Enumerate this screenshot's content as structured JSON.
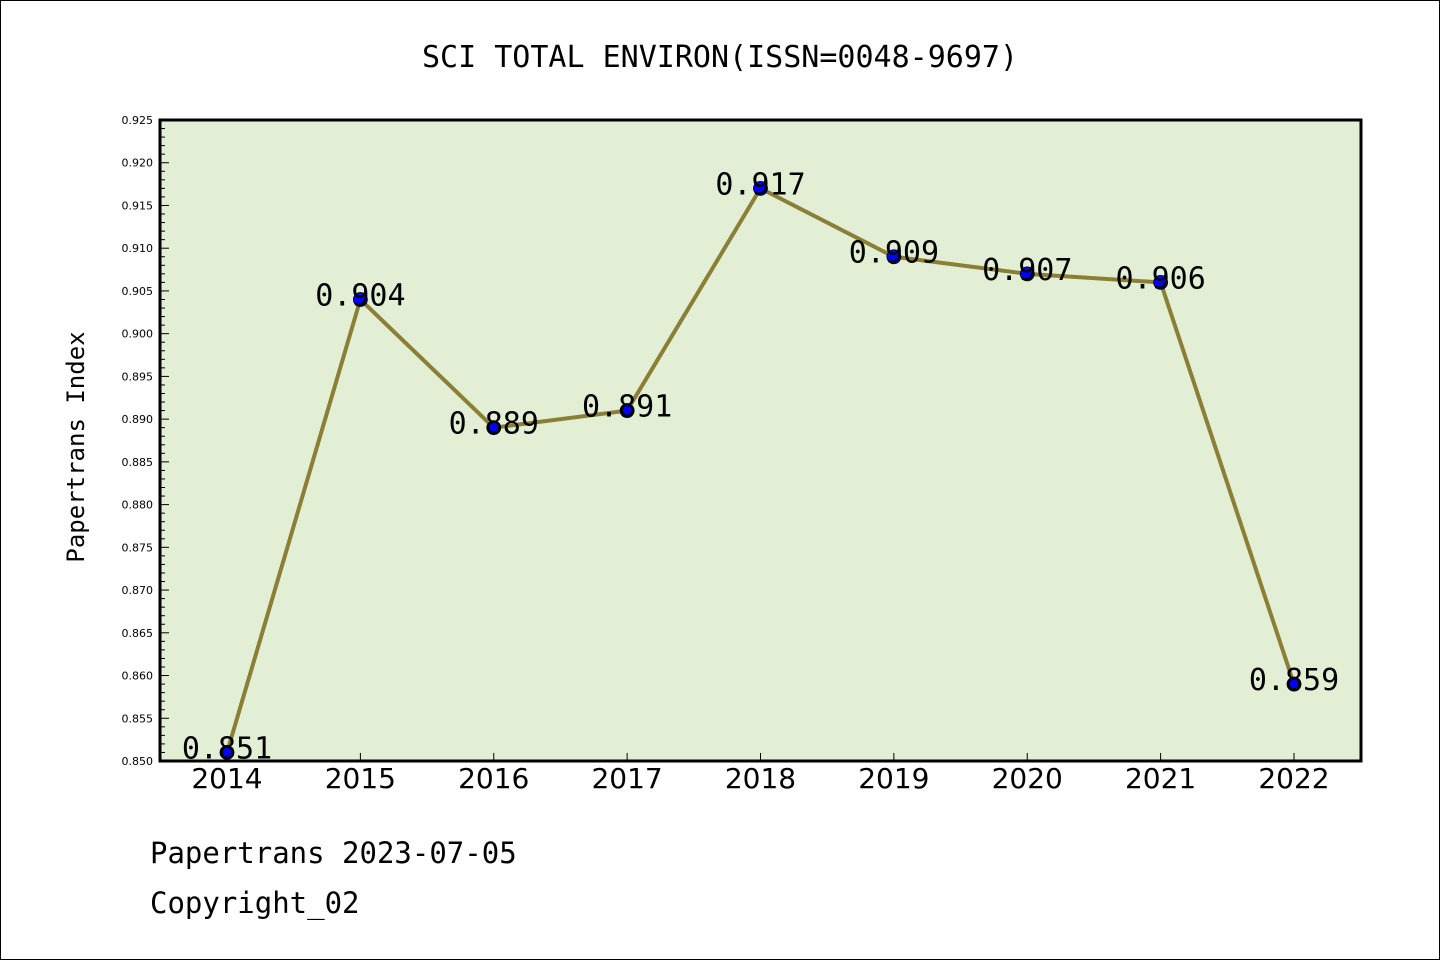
{
  "footer": {
    "line1": "Papertrans 2023-07-05",
    "line2": "Copyright_02"
  },
  "colors": {
    "plot_background": "#e2efd5",
    "line": "#8b7f35",
    "marker": "#0000ff"
  },
  "chart_data": {
    "type": "line",
    "title": "SCI TOTAL ENVIRON(ISSN=0048-9697)",
    "xlabel": "",
    "ylabel": "Papertrans Index",
    "categories": [
      "2014",
      "2015",
      "2016",
      "2017",
      "2018",
      "2019",
      "2020",
      "2021",
      "2022"
    ],
    "series": [
      {
        "values": [
          0.851,
          0.904,
          0.889,
          0.891,
          0.917,
          0.909,
          0.907,
          0.906,
          0.859
        ],
        "data_labels": [
          "0.851",
          "0.904",
          "0.889",
          "0.891",
          "0.917",
          "0.909",
          "0.907",
          "0.906",
          "0.859"
        ]
      }
    ],
    "ylim": [
      0.85,
      0.925
    ],
    "yticks": [
      "0.850",
      "0.855",
      "0.860",
      "0.865",
      "0.870",
      "0.875",
      "0.880",
      "0.885",
      "0.890",
      "0.895",
      "0.900",
      "0.905",
      "0.910",
      "0.915",
      "0.920",
      "0.925"
    ],
    "grid": false,
    "legend": "none"
  }
}
